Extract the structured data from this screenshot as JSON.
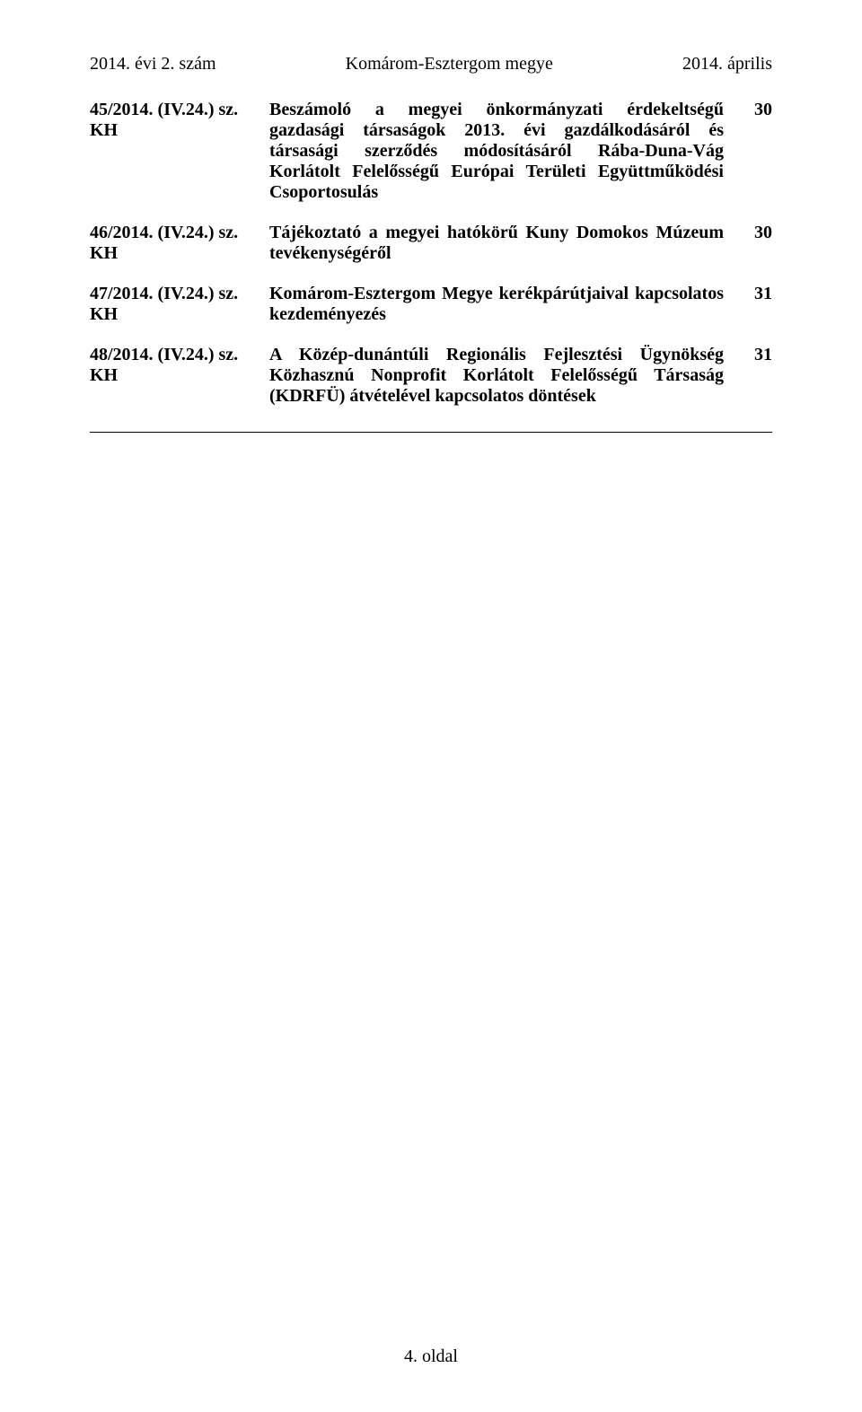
{
  "header": {
    "left": "2014. évi 2. szám",
    "center": "Komárom-Esztergom megye",
    "right": "2014. április"
  },
  "toc": [
    {
      "ref": "45/2014. (IV.24.) sz. KH",
      "desc": "Beszámoló a megyei önkormányzati érdekeltségű gazdasági társaságok 2013. évi gazdálkodásáról és társasági szerződés módosításáról Rába-Duna-Vág Korlátolt Felelősségű Európai Területi Együttműködési Csoportosulás",
      "page": "30"
    },
    {
      "ref": "46/2014. (IV.24.) sz. KH",
      "desc": "Tájékoztató a megyei hatókörű Kuny Domokos Múzeum tevékenységéről",
      "page": "30"
    },
    {
      "ref": "47/2014. (IV.24.) sz. KH",
      "desc": "Komárom-Esztergom Megye kerékpárútjaival kapcsolatos kezdeményezés",
      "page": "31"
    },
    {
      "ref": "48/2014. (IV.24.) sz. KH",
      "desc": "A Közép-dunántúli Regionális Fejlesztési Ügynökség Közhasznú Nonprofit Korlátolt Felelősségű Társaság (KDRFÜ) átvételével kapcsolatos döntések",
      "page": "31"
    }
  ],
  "footer": {
    "page_label": "4. oldal"
  }
}
